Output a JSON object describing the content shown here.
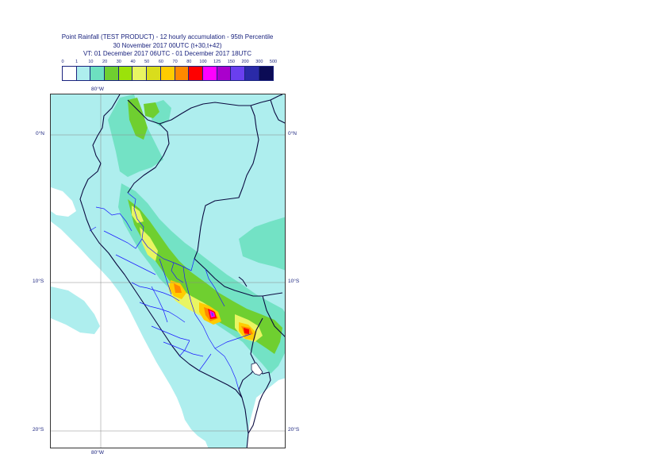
{
  "title": {
    "line1": "Point Rainfall (TEST PRODUCT) - 12 hourly accumulation - 95th Percentile",
    "line2": "30 November 2017 00UTC (t+30,t+42)",
    "line3": "VT: 01 December 2017 06UTC - 01 December 2017 18UTC"
  },
  "legend": {
    "thresholds": [
      "0",
      "1",
      "10",
      "20",
      "30",
      "40",
      "50",
      "60",
      "70",
      "80",
      "100",
      "125",
      "150",
      "200",
      "300",
      "500"
    ],
    "colors": [
      "#ffffff",
      "#aeeeee",
      "#6de0c0",
      "#6fcf30",
      "#9be20a",
      "#e9f562",
      "#d9dd1c",
      "#ffcc00",
      "#ff8800",
      "#ff0000",
      "#ff00ff",
      "#aa00cc",
      "#6a3fef",
      "#2a2aa8",
      "#0b0b55"
    ]
  },
  "map": {
    "background_colors": {
      "ocean": "#ffffff",
      "low": "#aeeeee",
      "mid": "#6de0c0",
      "green": "#6fcf30"
    },
    "border_color": "#0b0b40",
    "department_border_color": "#1a1aff",
    "axis_labels": {
      "top_lon": "80°W",
      "bottom_lon": "80°W",
      "lat_0_left": "0°N",
      "lat_0_right": "0°N",
      "lat_10_left": "10°S",
      "lat_10_right": "10°S",
      "lat_20_left": "20°S",
      "lat_20_right": "20°S"
    }
  }
}
